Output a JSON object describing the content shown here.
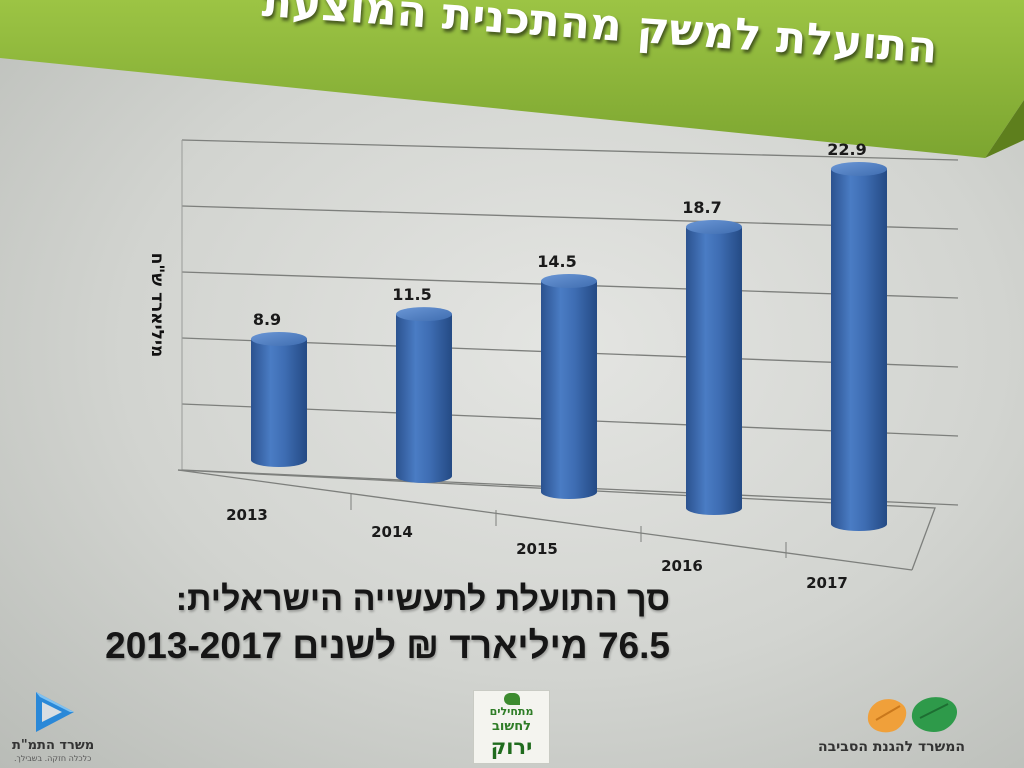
{
  "slide": {
    "title": "התועלת למשק מהתכנית המוצעת",
    "summary_line1": "סך התועלת לתעשייה הישראלית:",
    "summary_line2": "76.5 מיליארד ₪ לשנים 2013-2017"
  },
  "chart_data": {
    "type": "bar",
    "categories": [
      "2013",
      "2014",
      "2015",
      "2016",
      "2017"
    ],
    "values": [
      8.9,
      11.5,
      14.5,
      18.7,
      22.9
    ],
    "data_labels": [
      "8.9",
      "11.5",
      "14.5",
      "18.7",
      "22.9"
    ],
    "ylabel": "מיליארד ש\"ח",
    "ylim": [
      0,
      25
    ],
    "grid": true,
    "style": "3d-cylinder",
    "bar_color": "#3e6db3"
  },
  "logos": {
    "ministry_economy": "משרד התמ\"ת",
    "ministry_economy_tagline": "כלכלה חזקה. בשבילך.",
    "green_thinking": [
      "מתחילים",
      "לחשוב",
      "ירוק"
    ],
    "ministry_environment": "המשרד להגנת הסביבה"
  },
  "colors": {
    "title_band": "#8db43a",
    "title_band_dark": "#6f9523",
    "bar": "#3e6db3",
    "leaf_orange": "#f0a03a",
    "leaf_green": "#2e9a4a"
  },
  "icons": {
    "ministry_economy": "triangle-play-logo",
    "green_thinking": "seedling-logo",
    "ministry_environment": "leaves-logo"
  }
}
